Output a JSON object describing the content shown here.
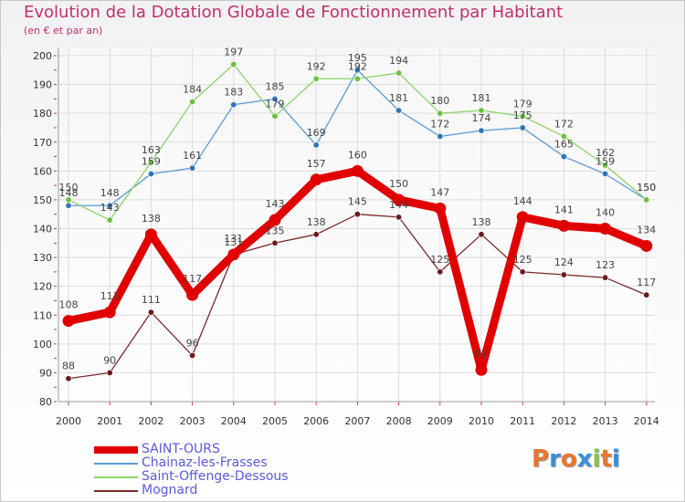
{
  "title": "Evolution de la Dotation Globale de Fonctionnement par Habitant",
  "subtitle": "(en € et par an)",
  "logo": {
    "text": "Proxiti",
    "letters": [
      "P",
      "r",
      "o",
      "x",
      "i",
      "t",
      "i"
    ],
    "colors": [
      "#e8762d",
      "#3a8fd8",
      "#e8762d",
      "#3a8fd8",
      "#8bc34a",
      "#e8762d",
      "#3a8fd8"
    ]
  },
  "chart_data": {
    "type": "line",
    "title": "Evolution de la Dotation Globale de Fonctionnement par Habitant",
    "ylabel": "(en € et par an)",
    "xlabel": "",
    "ylim": [
      80,
      200
    ],
    "yticks": [
      80,
      90,
      100,
      110,
      120,
      130,
      140,
      150,
      160,
      170,
      180,
      190,
      200
    ],
    "grid": true,
    "legend": "bottom-left",
    "categories": [
      "2000",
      "2001",
      "2002",
      "2003",
      "2004",
      "2005",
      "2006",
      "2007",
      "2008",
      "2009",
      "2010",
      "2011",
      "2012",
      "2013",
      "2014"
    ],
    "series": [
      {
        "name": "SAINT-OURS",
        "color": "#e00000",
        "markerColor": "#e00000",
        "bold": true,
        "values": [
          108,
          111,
          138,
          117,
          131,
          143,
          157,
          160,
          150,
          147,
          91,
          144,
          141,
          140,
          134
        ]
      },
      {
        "name": "Chainaz-les-Frasses",
        "color": "#5b9bd5",
        "markerColor": "#2e75b6",
        "bold": false,
        "values": [
          148,
          148,
          159,
          161,
          183,
          185,
          169,
          195,
          181,
          172,
          174,
          175,
          165,
          159,
          150
        ]
      },
      {
        "name": "Saint-Offenge-Dessous",
        "color": "#8bd36a",
        "markerColor": "#6cc040",
        "bold": false,
        "values": [
          150,
          143,
          163,
          184,
          197,
          179,
          192,
          192,
          194,
          180,
          181,
          179,
          172,
          162,
          150
        ]
      },
      {
        "name": "Mognard",
        "color": "#7a2a2a",
        "markerColor": "#6a1a1a",
        "bold": false,
        "values": [
          88,
          90,
          111,
          96,
          131,
          135,
          138,
          145,
          144,
          125,
          138,
          125,
          124,
          123,
          117
        ]
      }
    ]
  }
}
